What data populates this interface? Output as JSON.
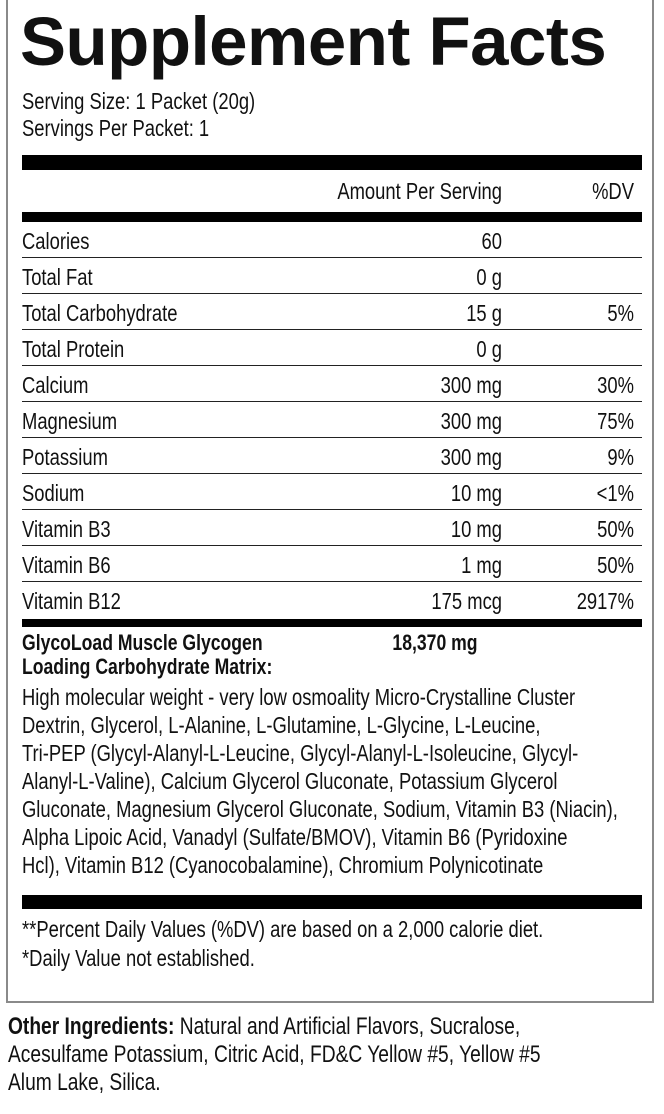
{
  "title": "Supplement Facts",
  "serving_size": "Serving Size: 1 Packet (20g)",
  "servings_per": "Servings Per Packet: 1",
  "header": {
    "amount": "Amount Per Serving",
    "dv": "%DV"
  },
  "rows": [
    {
      "name": "Calories",
      "amount": "60",
      "dv": ""
    },
    {
      "name": "Total Fat",
      "amount": "0 g",
      "dv": ""
    },
    {
      "name": "Total Carbohydrate",
      "amount": "15 g",
      "dv": "5%"
    },
    {
      "name": "Total Protein",
      "amount": "0 g",
      "dv": ""
    },
    {
      "name": "Calcium",
      "amount": "300 mg",
      "dv": "30%"
    },
    {
      "name": "Magnesium",
      "amount": "300 mg",
      "dv": "75%"
    },
    {
      "name": "Potassium",
      "amount": "300 mg",
      "dv": "9%"
    },
    {
      "name": "Sodium",
      "amount": "10 mg",
      "dv": "<1%"
    },
    {
      "name": "Vitamin B3",
      "amount": "10 mg",
      "dv": "50%"
    },
    {
      "name": "Vitamin B6",
      "amount": "1 mg",
      "dv": "50%"
    },
    {
      "name": "Vitamin B12",
      "amount": "175 mcg",
      "dv": "2917%"
    }
  ],
  "blend": {
    "name_line1": "GlycoLoad Muscle Glycogen",
    "name_line2": "Loading Carbohydrate Matrix:",
    "amount": "18,370 mg",
    "ingredients_lines": [
      "High molecular weight - very low osmoality Micro-Crystalline Cluster",
      "Dextrin, Glycerol, L-Alanine, L-Glutamine, L-Glycine, L-Leucine,",
      "Tri-PEP (Glycyl-Alanyl-L-Leucine, Glycyl-Alanyl-L-Isoleucine, Glycyl-",
      "Alanyl-L-Valine), Calcium Glycerol Gluconate, Potassium Glycerol",
      "Gluconate, Magnesium Glycerol Gluconate, Sodium, Vitamin B3 (Niacin),",
      "Alpha Lipoic Acid, Vanadyl (Sulfate/BMOV), Vitamin B6 (Pyridoxine",
      "Hcl), Vitamin B12 (Cyanocobalamine), Chromium Polynicotinate"
    ]
  },
  "footnotes": [
    "**Percent Daily Values (%DV) are based on a 2,000 calorie diet.",
    "*Daily Value not established."
  ],
  "other": {
    "label": "Other Ingredients:",
    "line1": " Natural and Artificial Flavors, Sucralose,",
    "line2": "Acesulfame Potassium, Citric Acid, FD&C Yellow #5, Yellow #5",
    "line3": "Alum Lake, Silica."
  }
}
